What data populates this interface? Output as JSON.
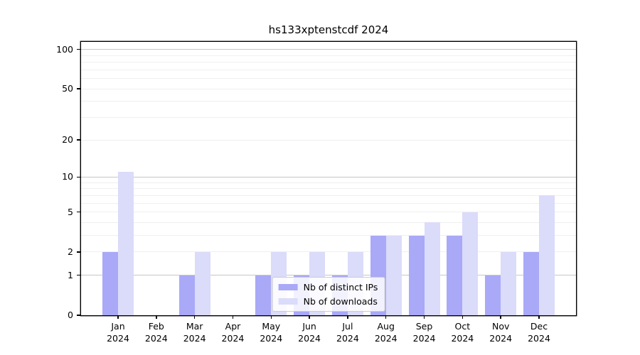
{
  "chart_data": {
    "type": "bar",
    "title": "hs133xptenstcdf 2024",
    "categories": [
      "Jan",
      "Feb",
      "Mar",
      "Apr",
      "May",
      "Jun",
      "Jul",
      "Aug",
      "Sep",
      "Oct",
      "Nov",
      "Dec"
    ],
    "category_year": "2024",
    "series": [
      {
        "name": "Nb of distinct IPs",
        "color": "#a9a9f7",
        "values": [
          2,
          0,
          1,
          0,
          1,
          1,
          1,
          3,
          3,
          3,
          1,
          2
        ]
      },
      {
        "name": "Nb of downloads",
        "color": "#dbdbfa",
        "values": [
          11,
          0,
          2,
          0,
          2,
          2,
          2,
          3,
          4,
          5,
          2,
          7
        ]
      }
    ],
    "yscale": "log1p",
    "ylim": [
      0,
      114
    ],
    "yticks": [
      0,
      1,
      2,
      5,
      10,
      20,
      50,
      100
    ],
    "major_gridlines": [
      1,
      10,
      100
    ],
    "minor_gridlines": [
      2,
      3,
      4,
      5,
      6,
      7,
      8,
      9,
      20,
      30,
      40,
      50,
      60,
      70,
      80,
      90
    ],
    "grid": true,
    "legend_position": "lower center",
    "colors": {
      "axis": "#000000",
      "major_grid": "#c6c6c6",
      "minor_grid": "#efefef",
      "background": "#ffffff"
    }
  }
}
